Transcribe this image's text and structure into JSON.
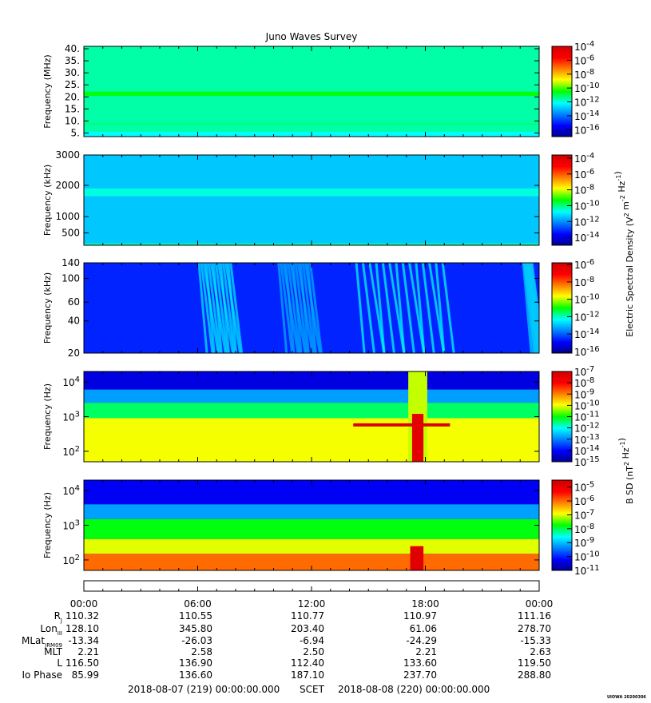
{
  "chart_data": {
    "type": "heatmap",
    "title": "Juno Waves Survey",
    "time_axis": {
      "ticks": [
        "00:00",
        "06:00",
        "12:00",
        "18:00",
        "00:00"
      ],
      "range_hours": [
        0,
        24
      ]
    },
    "panels": [
      {
        "ylabel": "Frequency (MHz)",
        "ylim": [
          3.5,
          41
        ],
        "yscale": "linear",
        "yticks": [
          {
            "v": 5,
            "t": "5."
          },
          {
            "v": 10,
            "t": "10."
          },
          {
            "v": 15,
            "t": "15."
          },
          {
            "v": 20,
            "t": "20."
          },
          {
            "v": 25,
            "t": "25."
          },
          {
            "v": 30,
            "t": "30."
          },
          {
            "v": 35,
            "t": "35."
          },
          {
            "v": 40,
            "t": "40."
          }
        ],
        "colorbar": {
          "min_exp": -17,
          "max_exp": -4,
          "ticks": [
            -4,
            -6,
            -8,
            -10,
            -12,
            -14,
            -16
          ]
        },
        "background_level": -11.6,
        "features": [
          {
            "kind": "band",
            "y": [
              20.4,
              22.2
            ],
            "level": -10.6
          },
          {
            "kind": "band",
            "y": [
              8.4,
              9.2
            ],
            "level": -11.3
          },
          {
            "kind": "band",
            "y": [
              3.5,
              5.5
            ],
            "level": -12.2
          }
        ]
      },
      {
        "ylabel": "Frequency (kHz)",
        "ylim": [
          150,
          3000
        ],
        "yscale": "mixed",
        "yticks": [
          {
            "v": 500,
            "t": "500"
          },
          {
            "v": 1000,
            "t": "1000"
          },
          {
            "v": 2000,
            "t": "2000"
          },
          {
            "v": 3000,
            "t": "3000"
          }
        ],
        "colorbar": {
          "min_exp": -15,
          "max_exp": -3.6,
          "ticks": [
            -4,
            -6,
            -8,
            -10,
            -12,
            -14
          ]
        },
        "background_level": -11.4,
        "features": [
          {
            "kind": "band",
            "y": [
              1650,
              1900
            ],
            "level": -10.6
          },
          {
            "kind": "band",
            "y": [
              150,
              200
            ],
            "level": -10.3
          }
        ]
      },
      {
        "ylabel": "Frequency (kHz)",
        "ylim": [
          20,
          140
        ],
        "yscale": "log",
        "yticks": [
          {
            "v": 20,
            "t": "20"
          },
          {
            "v": 40,
            "t": "40"
          },
          {
            "v": 60,
            "t": "60"
          },
          {
            "v": 100,
            "t": "100"
          },
          {
            "v": 140,
            "t": "140"
          }
        ],
        "colorbar": {
          "min_exp": -16.2,
          "max_exp": -5.8,
          "ticks": [
            -6,
            -8,
            -10,
            -12,
            -14,
            -16
          ]
        },
        "background_level": -14.6,
        "features": [
          {
            "kind": "burst",
            "t": [
              6.0,
              7.8
            ],
            "level": -12.6
          },
          {
            "kind": "burst",
            "t": [
              10.2,
              12.0
            ],
            "level": -13.2
          },
          {
            "kind": "burst",
            "t": [
              14.3,
              19.2
            ],
            "level": -12.4
          },
          {
            "kind": "burst",
            "t": [
              23.1,
              23.6
            ],
            "level": -12.9
          }
        ]
      },
      {
        "ylabel": "Frequency (Hz)",
        "ylim": [
          50,
          20000
        ],
        "yscale": "log",
        "yticks": [
          {
            "v": 100,
            "t": "10^2"
          },
          {
            "v": 1000,
            "t": "10^3"
          },
          {
            "v": 10000,
            "t": "10^4"
          }
        ],
        "colorbar": {
          "min_exp": -15,
          "max_exp": -7,
          "ticks": [
            -7,
            -8,
            -9,
            -10,
            -11,
            -12,
            -13,
            -14,
            -15
          ]
        },
        "background_level": -13.3,
        "features": [
          {
            "kind": "band",
            "y": [
              6000,
              20000
            ],
            "level": -14.3
          },
          {
            "kind": "band",
            "y": [
              2500,
              6000
            ],
            "level": -12.8
          },
          {
            "kind": "band",
            "y": [
              900,
              2500
            ],
            "level": -11.4
          },
          {
            "kind": "band",
            "y": [
              50,
              900
            ],
            "level": -10.0
          },
          {
            "kind": "box",
            "t": [
              17.1,
              18.1
            ],
            "y": [
              50,
              20000
            ],
            "level": -10.2
          },
          {
            "kind": "box",
            "t": [
              14.2,
              19.3
            ],
            "y": [
              520,
              640
            ],
            "level": -7.2
          },
          {
            "kind": "box",
            "t": [
              17.3,
              17.9
            ],
            "y": [
              50,
              1200
            ],
            "level": -7.4
          }
        ]
      },
      {
        "ylabel": "Frequency (Hz)",
        "ylim": [
          50,
          20000
        ],
        "yscale": "log",
        "yticks": [
          {
            "v": 100,
            "t": "10^2"
          },
          {
            "v": 1000,
            "t": "10^3"
          },
          {
            "v": 10000,
            "t": "10^4"
          }
        ],
        "colorbar": {
          "min_exp": -11,
          "max_exp": -4.5,
          "ticks": [
            -5,
            -6,
            -7,
            -8,
            -9,
            -10,
            -11
          ]
        },
        "background_level": -10.5,
        "features": [
          {
            "kind": "band",
            "y": [
              4000,
              20000
            ],
            "level": -10.3
          },
          {
            "kind": "band",
            "y": [
              1500,
              4000
            ],
            "level": -9.2
          },
          {
            "kind": "band",
            "y": [
              400,
              1500
            ],
            "level": -7.8
          },
          {
            "kind": "band",
            "y": [
              150,
              400
            ],
            "level": -7.0
          },
          {
            "kind": "band",
            "y": [
              50,
              150
            ],
            "level": -6.0
          },
          {
            "kind": "box",
            "t": [
              17.2,
              17.9
            ],
            "y": [
              50,
              250
            ],
            "level": -4.8
          }
        ]
      }
    ],
    "colorbar_labels": [
      {
        "panels": [
          1,
          2
        ],
        "text": "Electric Spectral Density (V^2 m^-2 Hz^-1)"
      },
      {
        "panels": [
          3,
          4
        ],
        "text": "B SD (nT^2 Hz^-1)"
      }
    ],
    "ephemeris": {
      "rows": [
        {
          "label": "R",
          "sub": "J",
          "values": [
            "110.32",
            "110.55",
            "110.77",
            "110.97",
            "111.16"
          ]
        },
        {
          "label": "Lon",
          "sub": "III",
          "values": [
            "128.10",
            "345.80",
            "203.40",
            "61.06",
            "278.70"
          ]
        },
        {
          "label": "MLat",
          "sub": "JRM09",
          "values": [
            "-13.34",
            "-26.03",
            "-6.94",
            "-24.29",
            "-15.33"
          ]
        },
        {
          "label": "MLT",
          "sub": "",
          "values": [
            "2.21",
            "2.58",
            "2.50",
            "2.21",
            "2.63"
          ]
        },
        {
          "label": "L",
          "sub": "",
          "values": [
            "116.50",
            "136.90",
            "112.40",
            "133.60",
            "119.50"
          ]
        },
        {
          "label": "Io Phase",
          "sub": "",
          "values": [
            "85.99",
            "136.60",
            "187.10",
            "237.70",
            "288.80"
          ]
        }
      ]
    },
    "footer": {
      "start": "2018-08-07 (219) 00:00:00.000",
      "scet": "SCET",
      "end": "2018-08-08 (220) 00:00:00.000",
      "credit": "UIOWA 20200306"
    }
  }
}
